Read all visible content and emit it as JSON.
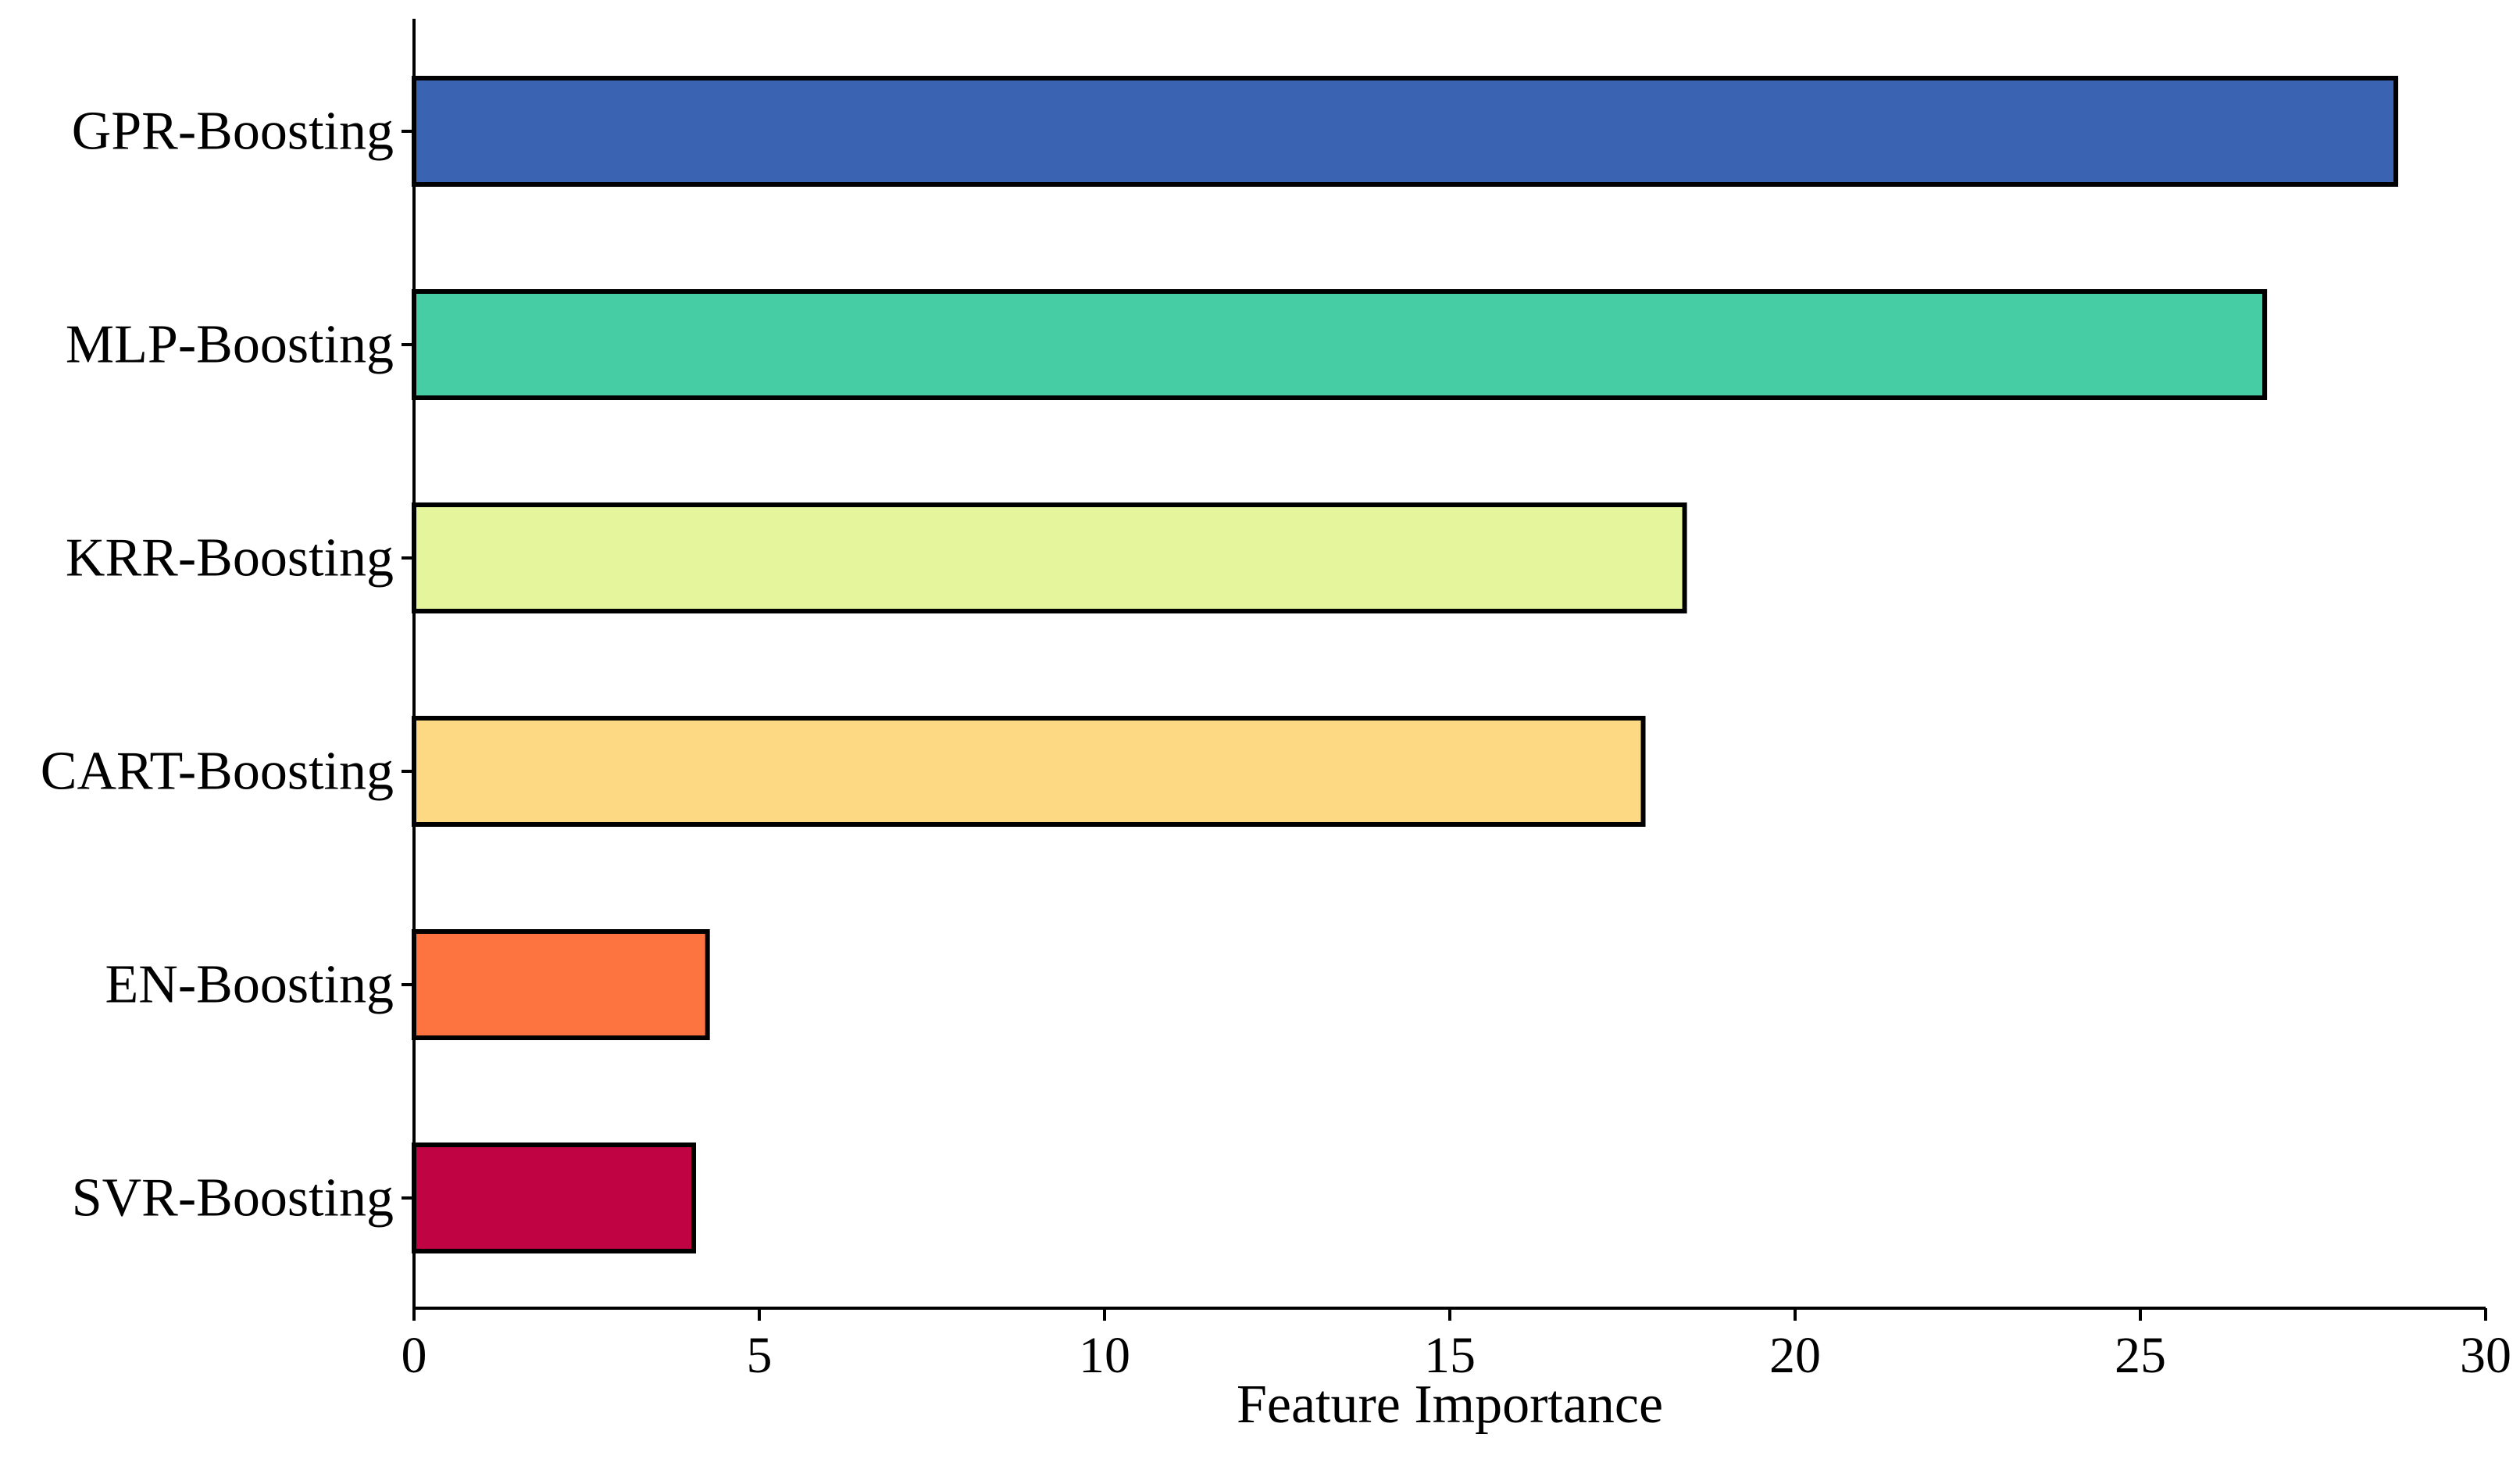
{
  "chart_data": {
    "type": "bar",
    "orientation": "horizontal",
    "categories": [
      "GPR-Boosting",
      "MLP-Boosting",
      "KRR-Boosting",
      "CART-Boosting",
      "EN-Boosting",
      "SVR-Boosting"
    ],
    "values": [
      28.7,
      26.8,
      18.4,
      17.8,
      4.25,
      4.05
    ],
    "colors": [
      "#3a64b2",
      "#47cda4",
      "#e5f59c",
      "#fed984",
      "#fe7440",
      "#c00342"
    ],
    "xlabel": "Feature Importance",
    "ylabel": "",
    "title": "",
    "xlim": [
      0,
      30
    ],
    "xticks": [
      "0",
      "5",
      "10",
      "15",
      "20",
      "25",
      "30"
    ],
    "grid": false,
    "legend": "none"
  }
}
